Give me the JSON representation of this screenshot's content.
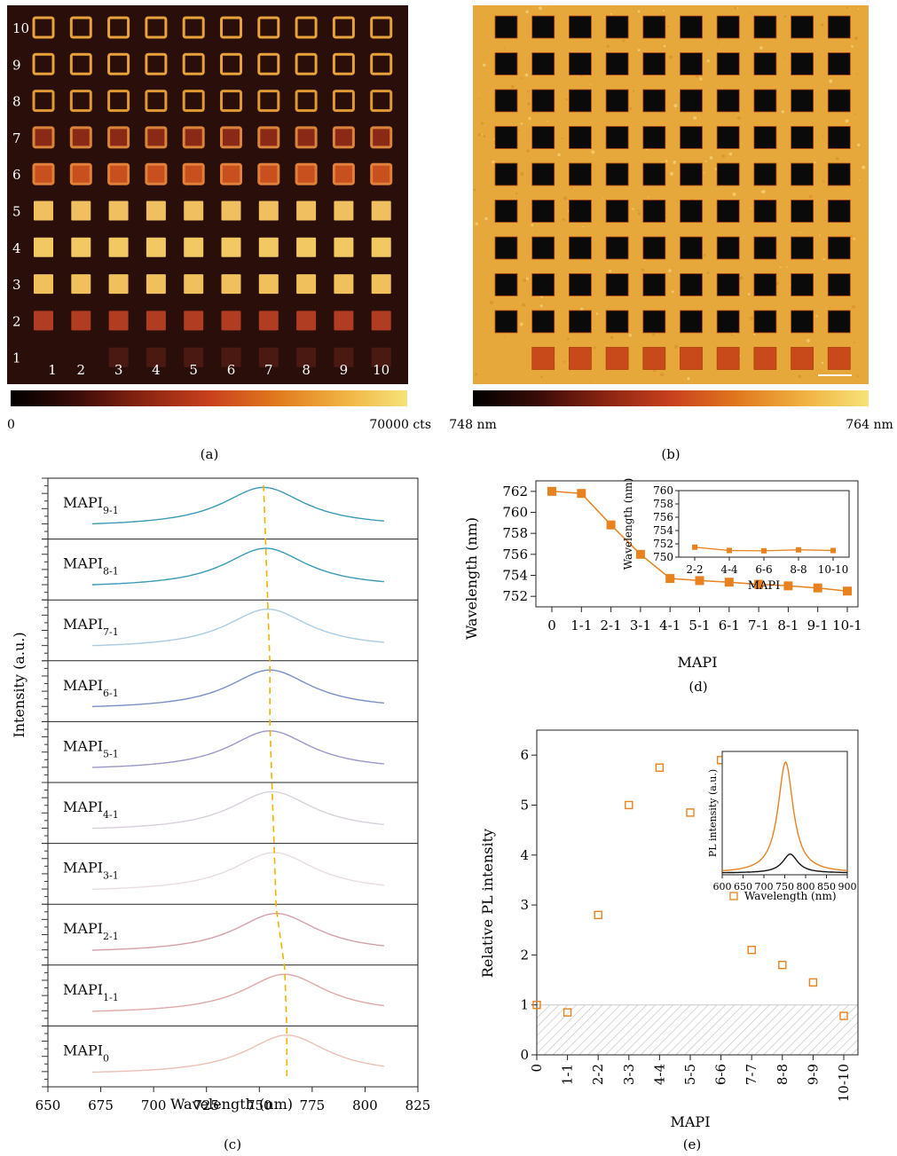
{
  "colors": {
    "map_a_background": "#2a0e0a",
    "map_b_background": "#e6a83a",
    "series_orange": "#e8821e",
    "dashed_guide": "#f0b400",
    "hatch": "#bbbbbb"
  },
  "colorbars": {
    "a": {
      "min_label": "0",
      "max_label": "70000 cts"
    },
    "b": {
      "min_label": "748 nm",
      "max_label": "764 nm"
    },
    "stops": [
      "#000000",
      "#3a0c08",
      "#8a2412",
      "#c8401e",
      "#e0781e",
      "#f0b040",
      "#f6e37a"
    ]
  },
  "panel_a": {
    "rows": [
      "10",
      "9",
      "8",
      "7",
      "6",
      "5",
      "4",
      "3",
      "2",
      "1"
    ],
    "columns": [
      "1",
      "2",
      "3",
      "4",
      "5",
      "6",
      "7",
      "8",
      "9",
      "10"
    ],
    "row_style": [
      {
        "kind": "ring",
        "color": "#e8a23a"
      },
      {
        "kind": "ring",
        "color": "#e8a23a"
      },
      {
        "kind": "ring",
        "color": "#e09a34"
      },
      {
        "kind": "ring-filled",
        "color": "#d9843a",
        "fill": "#8a2a16"
      },
      {
        "kind": "ring-filled",
        "color": "#e0803a",
        "fill": "#c8501e"
      },
      {
        "kind": "solid",
        "color": "#f0c060"
      },
      {
        "kind": "solid",
        "color": "#f2c863"
      },
      {
        "kind": "solid",
        "color": "#f0c05c"
      },
      {
        "kind": "solid",
        "color": "#b03c22"
      },
      {
        "kind": "solid",
        "color": "#4a1a12"
      }
    ]
  },
  "panel_b": {
    "grid_rows": 10,
    "grid_cols": 10,
    "square_color": "#0a0a0a",
    "bottom_row_color": "#c84a1a"
  },
  "labels": {
    "a": "(a)",
    "b": "(b)",
    "c": "(c)",
    "d": "(d)",
    "e": "(e)"
  },
  "chart_data": [
    {
      "panel": "c",
      "type": "line",
      "xlabel": "Wavelength (nm)",
      "ylabel": "Intensity (a.u.)",
      "xlim": [
        650,
        825
      ],
      "xticks": [
        650,
        675,
        700,
        725,
        750,
        775,
        800,
        825
      ],
      "x_range": [
        671,
        809
      ],
      "series": [
        {
          "name": "MAPI",
          "sub": "9-1",
          "peak": 752,
          "color": "#3a9ab8"
        },
        {
          "name": "MAPI",
          "sub": "8-1",
          "peak": 753,
          "color": "#3a9ab8"
        },
        {
          "name": "MAPI",
          "sub": "7-1",
          "peak": 754,
          "color": "#a8cce2"
        },
        {
          "name": "MAPI",
          "sub": "6-1",
          "peak": 755,
          "color": "#7a8fc8"
        },
        {
          "name": "MAPI",
          "sub": "5-1",
          "peak": 755,
          "color": "#9a98c8"
        },
        {
          "name": "MAPI",
          "sub": "4-1",
          "peak": 756,
          "color": "#d8d0dc"
        },
        {
          "name": "MAPI",
          "sub": "3-1",
          "peak": 757,
          "color": "#e8dce0"
        },
        {
          "name": "MAPI",
          "sub": "2-1",
          "peak": 758,
          "color": "#d4a0a8"
        },
        {
          "name": "MAPI",
          "sub": "1-1",
          "peak": 762,
          "color": "#e0a8a8"
        },
        {
          "name": "MAPI",
          "sub": "0",
          "peak": 763,
          "color": "#ecc0b4"
        }
      ]
    },
    {
      "panel": "d",
      "type": "line",
      "xlabel": "MAPI",
      "ylabel": "Wavelength (nm)",
      "categories": [
        "0",
        "1-1",
        "2-1",
        "3-1",
        "4-1",
        "5-1",
        "6-1",
        "7-1",
        "8-1",
        "9-1",
        "10-1"
      ],
      "values": [
        762.0,
        761.8,
        758.8,
        756.0,
        753.7,
        753.5,
        753.35,
        753.15,
        753.0,
        752.8,
        752.5
      ],
      "ylim": [
        751,
        763
      ],
      "yticks": [
        752,
        754,
        756,
        758,
        760,
        762
      ],
      "inset": {
        "type": "line",
        "xlabel": "MAPI",
        "ylabel": "Wavelength (nm)",
        "categories": [
          "2-2",
          "4-4",
          "6-6",
          "8-8",
          "10-10"
        ],
        "values": [
          751.5,
          751.0,
          750.95,
          751.1,
          751.0
        ],
        "ylim": [
          750,
          760
        ],
        "yticks": [
          750,
          752,
          754,
          756,
          758,
          760
        ]
      }
    },
    {
      "panel": "e",
      "type": "scatter",
      "xlabel": "MAPI",
      "ylabel": "Relative PL intensity",
      "categories": [
        "0",
        "1-1",
        "2-2",
        "3-3",
        "4-4",
        "5-5",
        "6-6",
        "7-7",
        "8-8",
        "9-9",
        "10-10"
      ],
      "values": [
        1.0,
        0.85,
        2.8,
        5.0,
        5.75,
        4.85,
        5.9,
        2.1,
        1.8,
        1.45,
        0.78
      ],
      "ylim": [
        0,
        6.5
      ],
      "yticks": [
        0,
        1,
        2,
        3,
        4,
        5,
        6
      ],
      "hatched_below": 1,
      "inset": {
        "type": "line",
        "xlabel": "Wavelength (nm)",
        "ylabel": "PL intensity (a.u.)",
        "xlim": [
          600,
          900
        ],
        "xticks": [
          600,
          650,
          700,
          750,
          800,
          850,
          900
        ],
        "series": [
          {
            "peak": 752,
            "amplitude": 1.0,
            "color": "#e8821e"
          },
          {
            "peak": 763,
            "amplitude": 0.17,
            "color": "#111111"
          }
        ]
      }
    }
  ]
}
